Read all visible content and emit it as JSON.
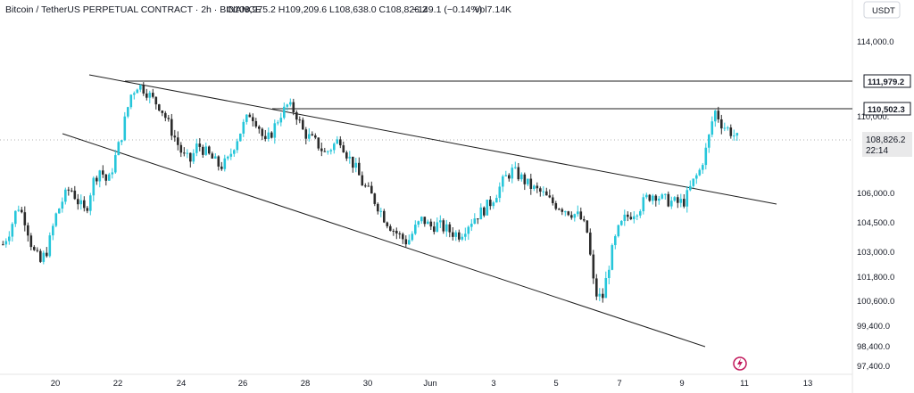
{
  "header": {
    "symbol": "Bitcoin / TetherUS PERPETUAL CONTRACT · 2h · BINANCE",
    "ohlc": "O108,975.2 H109,209.6 L108,638.0 C108,826.2",
    "change": "−149.1 (−0.14%)",
    "volume": "Vol7.14K"
  },
  "currency_button": "USDT",
  "price_tags": {
    "line_high": "111,979.2",
    "line_mid": "110,502.3",
    "current": "108,826.2",
    "countdown": "22:14"
  },
  "colors": {
    "up": "#26c6da",
    "down": "#2b2b2b",
    "trendline": "#1f1f1f",
    "current_price_line": "#9e9e9e"
  },
  "chart_data": {
    "type": "candlestick",
    "y_axis": {
      "ticks": [
        114000,
        111979.2,
        110502.3,
        110000,
        108826.2,
        106000,
        104500,
        103000,
        101800,
        100600,
        99400,
        98400,
        97400
      ],
      "tick_labels": [
        "114,000.0",
        "",
        "",
        "110,000.",
        "",
        "106,000.0",
        "104,500.0",
        "103,000.0",
        "101,800.0",
        "100,600.0",
        "99,400.0",
        "98,400.0",
        "97,400.0"
      ]
    },
    "x_axis": {
      "tick_labels": [
        "20",
        "22",
        "24",
        "26",
        "28",
        "30",
        "Jun",
        "3",
        "5",
        "7",
        "9",
        "11",
        "13"
      ]
    },
    "horizontal_levels": [
      111979.2,
      110502.3
    ],
    "current_price": 108826.2,
    "approx_close_path": [
      103400,
      104200,
      105400,
      104600,
      103100,
      102500,
      103200,
      104800,
      105700,
      106300,
      105600,
      105000,
      106600,
      107300,
      106500,
      107900,
      109300,
      111200,
      111800,
      111500,
      111000,
      110600,
      109700,
      108900,
      108000,
      107700,
      108600,
      108200,
      107800,
      107400,
      107700,
      108700,
      109500,
      110200,
      109700,
      108600,
      109300,
      110100,
      110700,
      110300,
      109300,
      108900,
      108600,
      108100,
      108500,
      108900,
      108000,
      107400,
      106500,
      106000,
      105400,
      104700,
      104200,
      103800,
      103500,
      104200,
      104700,
      104300,
      104400,
      104200,
      104000,
      103900,
      104400,
      104800,
      105100,
      105500,
      106100,
      106800,
      107200,
      106900,
      106500,
      106200,
      106000,
      105600,
      105400,
      105200,
      105000,
      104800,
      104000,
      101000,
      100700,
      102600,
      104000,
      104700,
      105000,
      105300,
      105800,
      106000,
      105700,
      105600,
      105500,
      105600,
      106500,
      107200,
      108500,
      110400,
      109600,
      109300,
      108900
    ]
  }
}
